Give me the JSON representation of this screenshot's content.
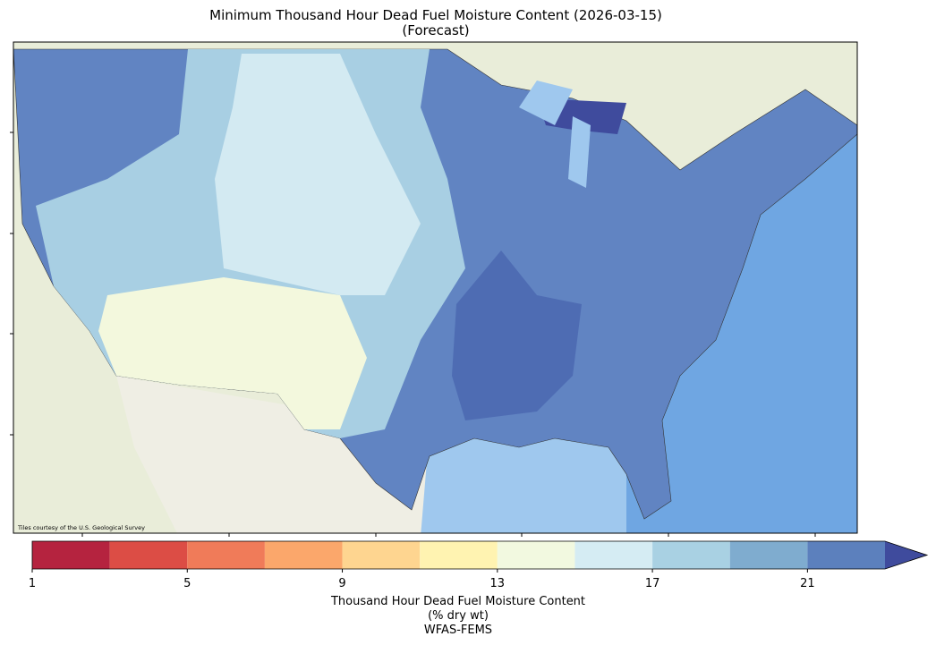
{
  "title": "Minimum Thousand Hour Dead Fuel Moisture Content (2026-03-15)",
  "subtitle": "(Forecast)",
  "map": {
    "attribution": "Tiles courtesy of the U.S. Geological Survey"
  },
  "colorbar": {
    "boundaries": [
      1,
      3,
      5,
      7,
      9,
      11,
      13,
      15,
      17,
      19,
      21,
      23
    ],
    "colors": [
      "#b5233f",
      "#dc4d45",
      "#f07b59",
      "#fba76b",
      "#fed590",
      "#fff3b1",
      "#f2f9e0",
      "#d5ecf3",
      "#a9d1e3",
      "#7faccf",
      "#5c80bd"
    ],
    "extend_color": "#3f4b9d",
    "ticks": [
      1,
      5,
      9,
      13,
      17,
      21
    ],
    "label": [
      "Thousand Hour Dead Fuel Moisture Content",
      "(% dry wt)",
      "WFAS-FEMS"
    ]
  }
}
